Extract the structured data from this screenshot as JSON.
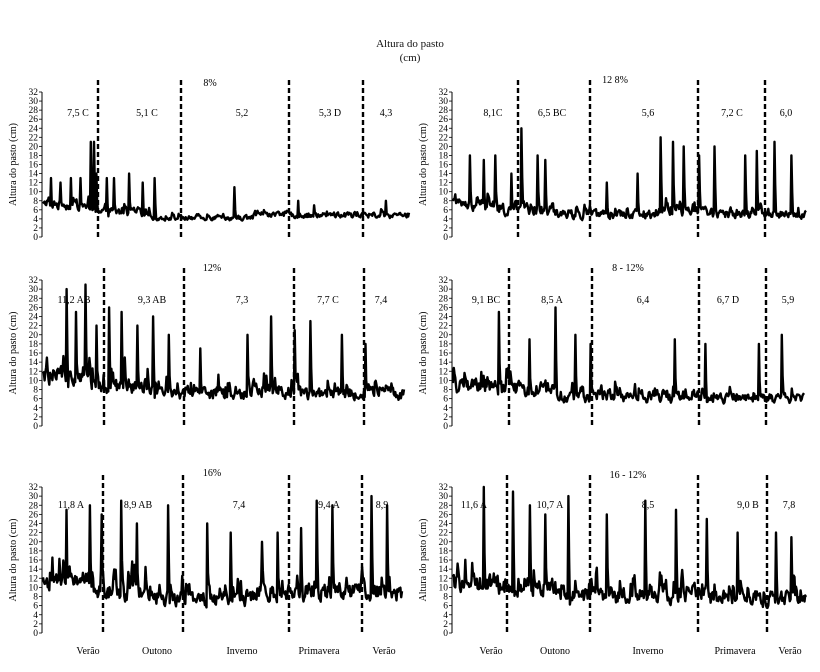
{
  "figure": {
    "title": "Altura do pasto",
    "unit": "(cm)"
  },
  "chart_data": [
    {
      "type": "line",
      "title": "8%",
      "ylabel": "Altura do pasto (cm)",
      "ylim": [
        0,
        32
      ],
      "yticks": [
        0,
        2,
        4,
        6,
        8,
        10,
        12,
        14,
        16,
        18,
        20,
        22,
        24,
        26,
        28,
        30,
        32
      ],
      "seasons": [
        "",
        "",
        "",
        "",
        ""
      ],
      "season_means": [
        "7,5 C",
        "5,1 C",
        "5,2",
        "5,3 D",
        "4,3"
      ],
      "series": [
        {
          "n": 460,
          "segments": [
            [
              7,
              1.6,
              2
            ],
            [
              5.5,
              1.5,
              2.5
            ],
            [
              4.2,
              0.8,
              1.6
            ],
            [
              4.8,
              0.9,
              1.5
            ],
            [
              4.8,
              1,
              1.5
            ]
          ],
          "peaks": [
            [
              10,
              13
            ],
            [
              22,
              12
            ],
            [
              35,
              13
            ],
            [
              47,
              13
            ],
            [
              60,
              21
            ],
            [
              64,
              21
            ],
            [
              67,
              14
            ],
            [
              80,
              13
            ],
            [
              89,
              13
            ],
            [
              108,
              14
            ],
            [
              125,
              12
            ],
            [
              140,
              13
            ],
            [
              240,
              11
            ],
            [
              320,
              8
            ],
            [
              340,
              7
            ],
            [
              430,
              8
            ]
          ]
        }
      ],
      "boundaries": [
        58,
        134,
        268,
        330
      ]
    },
    {
      "type": "line",
      "title": "12 8%",
      "ylabel": "Altura do pasto (cm)",
      "ylim": [
        0,
        32
      ],
      "yticks": [
        0,
        2,
        4,
        6,
        8,
        10,
        12,
        14,
        16,
        18,
        20,
        22,
        24,
        26,
        28,
        30,
        32
      ],
      "seasons": [
        "",
        "",
        "",
        "",
        ""
      ],
      "season_means": [
        "8,1C",
        "6,5 BC",
        "5,6",
        "7,2 C",
        "6,0"
      ],
      "series": [
        {
          "n": 460,
          "segments": [
            [
              7,
              2,
              4
            ],
            [
              6,
              2,
              4
            ],
            [
              5,
              1.5,
              3
            ],
            [
              6,
              2,
              4
            ],
            [
              5,
              1.5,
              3
            ]
          ],
          "peaks": [
            [
              22,
              18
            ],
            [
              40,
              17
            ],
            [
              55,
              18
            ],
            [
              76,
              14
            ],
            [
              89,
              24
            ],
            [
              110,
              18
            ],
            [
              120,
              17
            ],
            [
              200,
              12
            ],
            [
              240,
              14
            ],
            [
              270,
              22
            ],
            [
              286,
              21
            ],
            [
              300,
              20
            ],
            [
              320,
              18
            ],
            [
              340,
              20
            ],
            [
              380,
              18
            ],
            [
              395,
              19
            ],
            [
              418,
              21
            ],
            [
              440,
              18
            ]
          ]
        }
      ],
      "boundaries": [
        58,
        134,
        268,
        330
      ]
    },
    {
      "type": "line",
      "title": "12%",
      "ylabel": "Altura do pasto (cm)",
      "ylim": [
        0,
        32
      ],
      "yticks": [
        0,
        2,
        4,
        6,
        8,
        10,
        12,
        14,
        16,
        18,
        20,
        22,
        24,
        26,
        28,
        30,
        32
      ],
      "seasons": [
        "",
        "",
        "",
        "",
        ""
      ],
      "season_means": [
        "11,2 AB",
        "9,3 AB",
        "7,3",
        "7,7 C",
        "7,4"
      ],
      "series": [
        {
          "n": 460,
          "segments": [
            [
              11,
              3,
              8
            ],
            [
              9,
              3,
              8
            ],
            [
              7,
              2,
              6
            ],
            [
              7.5,
              2.5,
              7
            ],
            [
              7,
              2,
              5
            ]
          ],
          "peaks": [
            [
              5,
              15
            ],
            [
              30,
              30
            ],
            [
              42,
              25
            ],
            [
              54,
              31
            ],
            [
              68,
              22
            ],
            [
              84,
              26
            ],
            [
              100,
              25
            ],
            [
              120,
              22
            ],
            [
              140,
              24
            ],
            [
              160,
              20
            ],
            [
              200,
              17
            ],
            [
              260,
              20
            ],
            [
              290,
              24
            ],
            [
              320,
              21
            ],
            [
              340,
              23
            ],
            [
              380,
              20
            ],
            [
              410,
              18
            ]
          ]
        }
      ],
      "boundaries": [
        58,
        134,
        268,
        330
      ]
    },
    {
      "type": "line",
      "title": "8 - 12%",
      "ylabel": "Altura do pasto (cm)",
      "ylim": [
        0,
        32
      ],
      "yticks": [
        0,
        2,
        4,
        6,
        8,
        10,
        12,
        14,
        16,
        18,
        20,
        22,
        24,
        26,
        28,
        30,
        32
      ],
      "seasons": [
        "",
        "",
        "",
        "",
        ""
      ],
      "season_means": [
        "9,1 BC",
        "8,5 A",
        "6,4",
        "6,7 D",
        "5,9"
      ],
      "series": [
        {
          "n": 460,
          "segments": [
            [
              8.5,
              2.5,
              6
            ],
            [
              8,
              2.5,
              6
            ],
            [
              6.5,
              2,
              5
            ],
            [
              6.5,
              2,
              5
            ],
            [
              6,
              1.5,
              4
            ]
          ],
          "peaks": [
            [
              60,
              25
            ],
            [
              100,
              19
            ],
            [
              134,
              26
            ],
            [
              160,
              20
            ],
            [
              180,
              18
            ],
            [
              290,
              19
            ],
            [
              330,
              18
            ],
            [
              400,
              18
            ],
            [
              430,
              20
            ]
          ]
        }
      ],
      "boundaries": [
        58,
        134,
        268,
        330
      ]
    },
    {
      "type": "line",
      "title": "16%",
      "ylabel": "Altura do pasto (cm)",
      "ylim": [
        0,
        32
      ],
      "yticks": [
        0,
        2,
        4,
        6,
        8,
        10,
        12,
        14,
        16,
        18,
        20,
        22,
        24,
        26,
        28,
        30,
        32
      ],
      "seasons": [
        "Verão",
        "Outono",
        "Inverno",
        "Primavera",
        "Verão"
      ],
      "season_means": [
        "11,8 A",
        "8,9 AB",
        "7,4",
        "9,4 A",
        "8,9"
      ],
      "series": [
        {
          "n": 460,
          "segments": [
            [
              11,
              3,
              9
            ],
            [
              9,
              3,
              9
            ],
            [
              7.5,
              2.5,
              8
            ],
            [
              9,
              3,
              8
            ],
            [
              9,
              3,
              8
            ]
          ],
          "peaks": [
            [
              30,
              27
            ],
            [
              60,
              28
            ],
            [
              75,
              26
            ],
            [
              100,
              29
            ],
            [
              120,
              24
            ],
            [
              160,
              28
            ],
            [
              210,
              24
            ],
            [
              240,
              22
            ],
            [
              280,
              20
            ],
            [
              300,
              22
            ],
            [
              330,
              23
            ],
            [
              350,
              29
            ],
            [
              370,
              28
            ],
            [
              420,
              30
            ],
            [
              440,
              28
            ]
          ]
        }
      ],
      "boundaries": [
        58,
        134,
        268,
        330
      ]
    },
    {
      "type": "line",
      "title": "16 - 12%",
      "ylabel": "Altura do pasto (cm)",
      "ylim": [
        0,
        32
      ],
      "yticks": [
        0,
        2,
        4,
        6,
        8,
        10,
        12,
        14,
        16,
        18,
        20,
        22,
        24,
        26,
        28,
        30,
        32
      ],
      "seasons": [
        "Verão",
        "Outono",
        "Inverno",
        "Primavera",
        "Verão"
      ],
      "season_means": [
        "11,6 A",
        "10,7 A",
        "8,5",
        "9,0 B",
        "7,8"
      ],
      "series": [
        {
          "n": 460,
          "segments": [
            [
              11,
              3,
              9
            ],
            [
              10,
              3,
              9
            ],
            [
              8,
              2.5,
              8
            ],
            [
              8.5,
              3,
              8
            ],
            [
              7.5,
              2.5,
              6
            ]
          ],
          "peaks": [
            [
              40,
              32
            ],
            [
              78,
              31
            ],
            [
              100,
              28
            ],
            [
              120,
              26
            ],
            [
              150,
              30
            ],
            [
              200,
              26
            ],
            [
              250,
              29
            ],
            [
              290,
              27
            ],
            [
              330,
              25
            ],
            [
              370,
              22
            ],
            [
              420,
              22
            ],
            [
              440,
              21
            ]
          ]
        }
      ],
      "boundaries": [
        58,
        134,
        268,
        330
      ]
    }
  ]
}
